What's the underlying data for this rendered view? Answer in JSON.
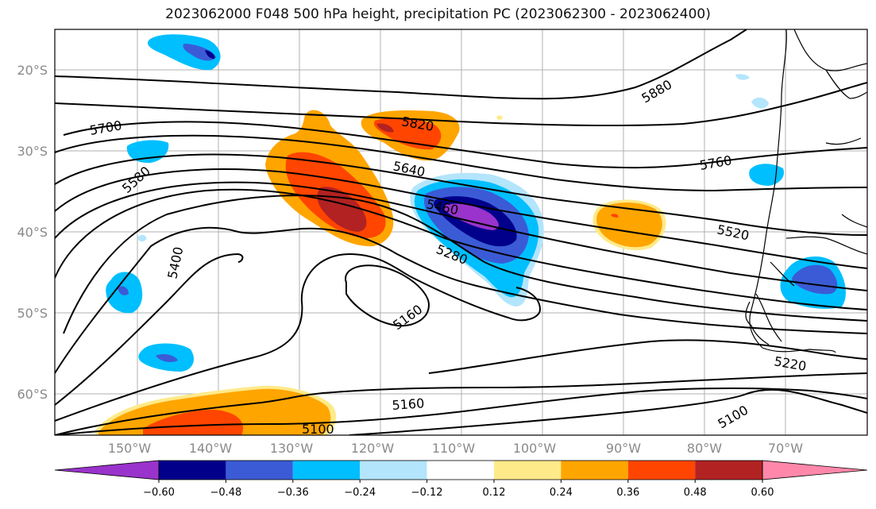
{
  "title": "2023062000 F048 500 hPa height, precipitation PC (2023062300 - 2023062400)",
  "map": {
    "lat_labels": [
      "20°S",
      "30°S",
      "40°S",
      "50°S",
      "60°S"
    ],
    "lon_labels": [
      "150°W",
      "140°W",
      "130°W",
      "120°W",
      "110°W",
      "100°W",
      "90°W",
      "80°W",
      "70°W"
    ],
    "contour_labels": [
      "5880",
      "5820",
      "5760",
      "5700",
      "5640",
      "5580",
      "5520",
      "5460",
      "5400",
      "5280",
      "5220",
      "5160",
      "5160",
      "5100",
      "5100"
    ],
    "coastline_color": "#000000",
    "grid": true
  },
  "colorbar": {
    "colors": [
      "#9933cc",
      "#00008b",
      "#3b5bd6",
      "#00bfff",
      "#b3e5fc",
      "#ffffff",
      "#ffea8a",
      "#ffa500",
      "#ff4500",
      "#b22222",
      "#ff88aa"
    ],
    "tick_labels": [
      "−0.60",
      "−0.48",
      "−0.36",
      "−0.24",
      "−0.12",
      "0.12",
      "0.24",
      "0.36",
      "0.48",
      "0.60"
    ],
    "extend": "both"
  }
}
